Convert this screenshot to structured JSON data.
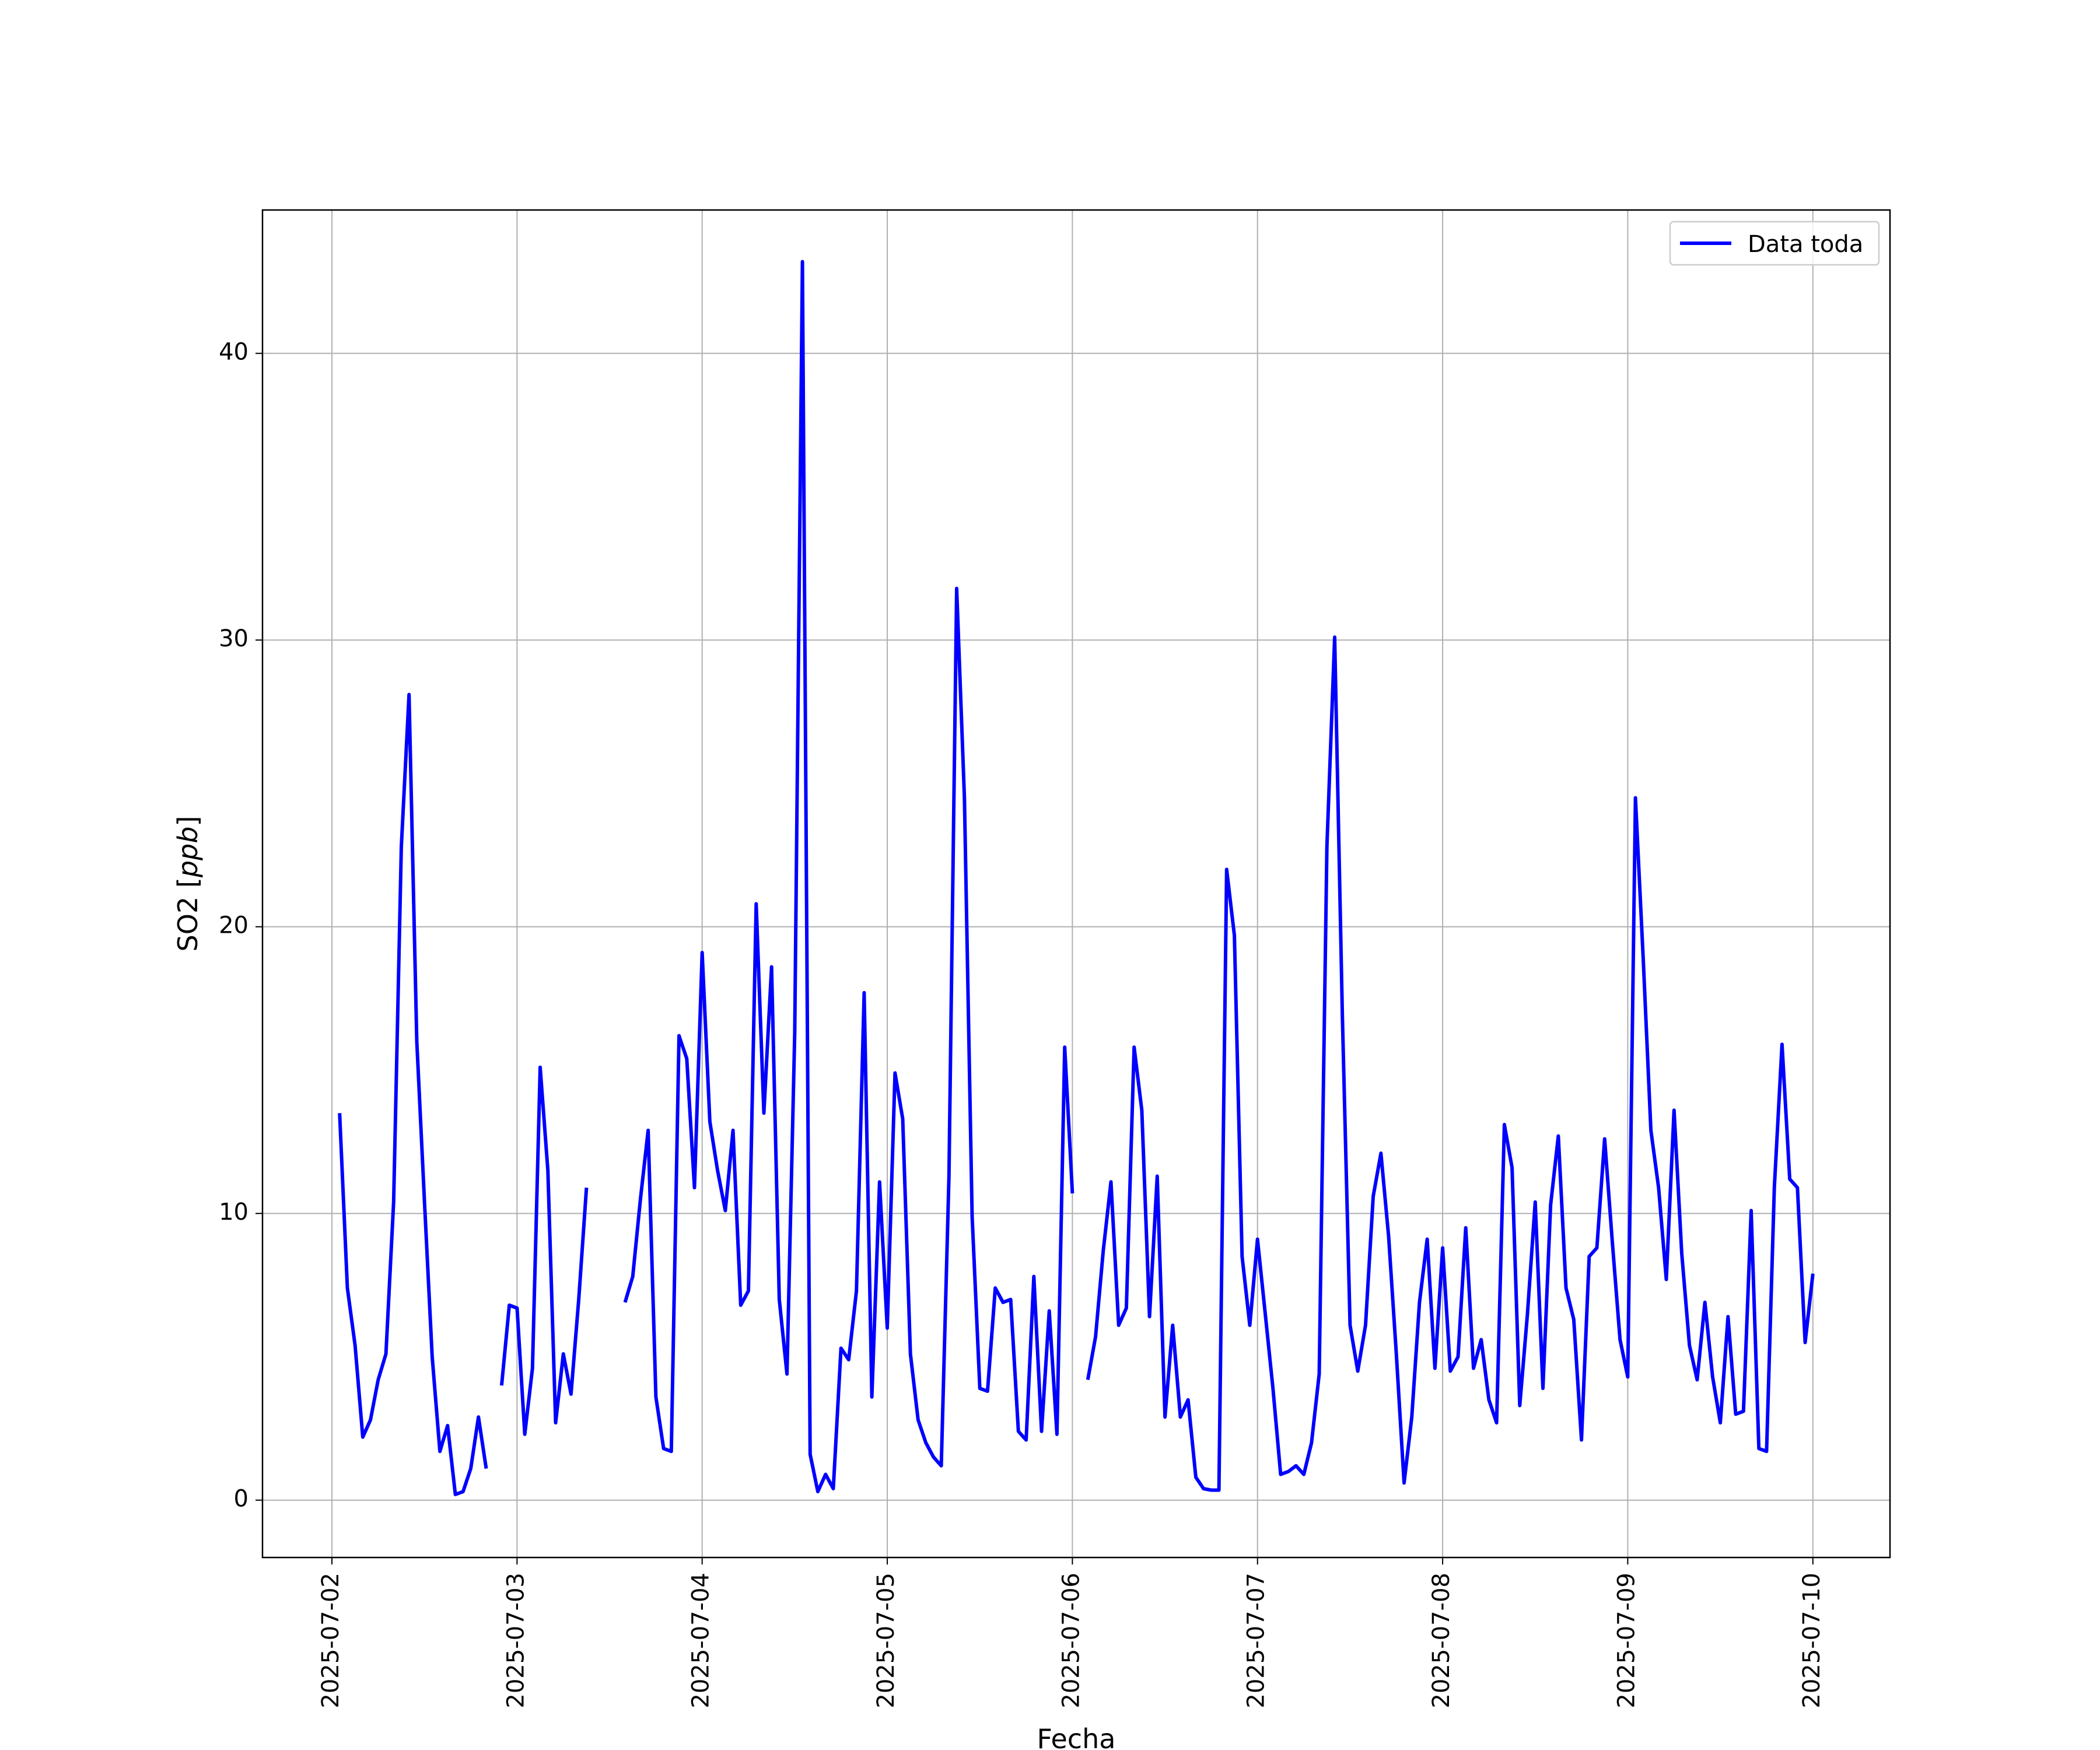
{
  "chart_data": {
    "type": "line",
    "title": "",
    "xlabel": "Fecha",
    "ylabel": "SO2 [",
    "ylabel_italic": "ppb",
    "ylabel_close": "]",
    "x_ticks": [
      "2025-07-02",
      "2025-07-03",
      "2025-07-04",
      "2025-07-05",
      "2025-07-06",
      "2025-07-07",
      "2025-07-08",
      "2025-07-09",
      "2025-07-10"
    ],
    "y_ticks": [
      0,
      10,
      20,
      30,
      40
    ],
    "xlim": [
      "2025-07-01 15:00",
      "2025-07-10 10:00"
    ],
    "ylim": [
      -2,
      45
    ],
    "grid": true,
    "legend_position": "top-right",
    "color": "#0000ff",
    "series": [
      {
        "name": "Data toda",
        "x": [
          "2025-07-02 01:00",
          "2025-07-02 02:00",
          "2025-07-02 03:00",
          "2025-07-02 04:00",
          "2025-07-02 05:00",
          "2025-07-02 06:00",
          "2025-07-02 07:00",
          "2025-07-02 08:00",
          "2025-07-02 09:00",
          "2025-07-02 10:00",
          "2025-07-02 11:00",
          "2025-07-02 12:00",
          "2025-07-02 13:00",
          "2025-07-02 14:00",
          "2025-07-02 15:00",
          "2025-07-02 16:00",
          "2025-07-02 17:00",
          "2025-07-02 18:00",
          "2025-07-02 19:00",
          "2025-07-02 20:00",
          null,
          "2025-07-02 22:00",
          "2025-07-02 23:00",
          "2025-07-03 00:00",
          "2025-07-03 01:00",
          "2025-07-03 02:00",
          "2025-07-03 03:00",
          "2025-07-03 04:00",
          "2025-07-03 05:00",
          "2025-07-03 06:00",
          "2025-07-03 07:00",
          "2025-07-03 08:00",
          "2025-07-03 09:00",
          null,
          "2025-07-03 14:00",
          "2025-07-03 15:00",
          "2025-07-03 16:00",
          "2025-07-03 17:00",
          "2025-07-03 18:00",
          "2025-07-03 19:00",
          "2025-07-03 20:00",
          "2025-07-03 21:00",
          "2025-07-03 22:00",
          "2025-07-03 23:00",
          "2025-07-04 00:00",
          "2025-07-04 01:00",
          "2025-07-04 02:00",
          "2025-07-04 03:00",
          "2025-07-04 04:00",
          "2025-07-04 05:00",
          "2025-07-04 06:00",
          "2025-07-04 07:00",
          "2025-07-04 08:00",
          "2025-07-04 09:00",
          "2025-07-04 10:00",
          "2025-07-04 11:00",
          "2025-07-04 12:00",
          "2025-07-04 13:00",
          "2025-07-04 14:00",
          "2025-07-04 15:00",
          "2025-07-04 16:00",
          "2025-07-04 17:00",
          "2025-07-04 18:00",
          "2025-07-04 19:00",
          "2025-07-04 20:00",
          "2025-07-04 21:00",
          "2025-07-04 22:00",
          "2025-07-04 23:00",
          "2025-07-05 00:00",
          "2025-07-05 01:00",
          "2025-07-05 02:00",
          "2025-07-05 03:00",
          "2025-07-05 04:00",
          "2025-07-05 05:00",
          "2025-07-05 06:00",
          "2025-07-05 07:00",
          "2025-07-05 08:00",
          "2025-07-05 09:00",
          "2025-07-05 10:00",
          "2025-07-05 11:00",
          "2025-07-05 12:00",
          "2025-07-05 13:00",
          "2025-07-05 14:00",
          "2025-07-05 15:00",
          "2025-07-05 16:00",
          "2025-07-05 17:00",
          "2025-07-05 18:00",
          "2025-07-05 19:00",
          "2025-07-05 20:00",
          "2025-07-05 21:00",
          "2025-07-05 22:00",
          "2025-07-05 23:00",
          "2025-07-06 00:00",
          null,
          "2025-07-06 02:00",
          "2025-07-06 03:00",
          "2025-07-06 04:00",
          "2025-07-06 05:00",
          "2025-07-06 06:00",
          "2025-07-06 07:00",
          "2025-07-06 08:00",
          "2025-07-06 09:00",
          "2025-07-06 10:00",
          "2025-07-06 11:00",
          "2025-07-06 12:00",
          "2025-07-06 13:00",
          "2025-07-06 14:00",
          "2025-07-06 15:00",
          "2025-07-06 16:00",
          "2025-07-06 17:00",
          "2025-07-06 18:00",
          "2025-07-06 19:00",
          "2025-07-06 20:00",
          "2025-07-06 21:00",
          "2025-07-06 22:00",
          "2025-07-06 23:00",
          "2025-07-07 00:00",
          "2025-07-07 01:00",
          "2025-07-07 02:00",
          "2025-07-07 03:00",
          "2025-07-07 04:00",
          "2025-07-07 05:00",
          "2025-07-07 06:00",
          "2025-07-07 07:00",
          "2025-07-07 08:00",
          "2025-07-07 09:00",
          "2025-07-07 10:00",
          "2025-07-07 11:00",
          "2025-07-07 12:00",
          "2025-07-07 13:00",
          "2025-07-07 14:00",
          "2025-07-07 15:00",
          "2025-07-07 16:00",
          "2025-07-07 17:00",
          "2025-07-07 18:00",
          "2025-07-07 19:00",
          "2025-07-07 20:00",
          "2025-07-07 21:00",
          "2025-07-07 22:00",
          "2025-07-07 23:00",
          "2025-07-08 00:00",
          "2025-07-08 01:00",
          "2025-07-08 02:00",
          "2025-07-08 03:00",
          "2025-07-08 04:00",
          "2025-07-08 05:00",
          "2025-07-08 06:00",
          "2025-07-08 07:00",
          "2025-07-08 08:00",
          "2025-07-08 09:00",
          "2025-07-08 10:00",
          "2025-07-08 11:00",
          "2025-07-08 12:00",
          "2025-07-08 13:00",
          "2025-07-08 14:00",
          "2025-07-08 15:00",
          "2025-07-08 16:00",
          "2025-07-08 17:00",
          "2025-07-08 18:00",
          "2025-07-08 19:00",
          "2025-07-08 20:00",
          "2025-07-08 21:00",
          "2025-07-08 22:00",
          "2025-07-08 23:00",
          "2025-07-09 00:00",
          "2025-07-09 01:00",
          "2025-07-09 02:00",
          "2025-07-09 03:00",
          "2025-07-09 04:00",
          "2025-07-09 05:00",
          "2025-07-09 06:00",
          "2025-07-09 07:00",
          "2025-07-09 08:00",
          "2025-07-09 09:00",
          "2025-07-09 10:00",
          "2025-07-09 11:00",
          "2025-07-09 12:00",
          "2025-07-09 13:00",
          "2025-07-09 14:00",
          "2025-07-09 15:00",
          "2025-07-09 16:00",
          "2025-07-09 17:00",
          "2025-07-09 18:00",
          "2025-07-09 19:00",
          "2025-07-09 20:00",
          "2025-07-09 21:00",
          "2025-07-09 22:00",
          "2025-07-09 23:00",
          "2025-07-10 00:00"
        ],
        "values": [
          13.5,
          7.4,
          5.4,
          2.2,
          2.8,
          4.2,
          5.1,
          10.4,
          22.8,
          28.1,
          16.0,
          10.4,
          5.0,
          1.7,
          2.6,
          0.2,
          0.3,
          1.1,
          2.9,
          1.1,
          null,
          4.0,
          6.8,
          6.7,
          2.3,
          4.6,
          15.1,
          11.5,
          2.7,
          5.1,
          3.7,
          7.0,
          10.9,
          null,
          6.9,
          7.8,
          10.5,
          12.9,
          3.6,
          1.8,
          1.7,
          16.2,
          15.4,
          10.9,
          19.1,
          13.2,
          11.5,
          10.1,
          12.9,
          6.8,
          7.3,
          20.8,
          13.5,
          18.6,
          7.0,
          4.4,
          16.3,
          43.2,
          1.6,
          0.3,
          0.9,
          0.4,
          5.3,
          4.9,
          7.3,
          17.7,
          3.6,
          11.1,
          6.0,
          14.9,
          13.3,
          5.1,
          2.8,
          2.0,
          1.5,
          1.2,
          11.3,
          31.8,
          24.5,
          9.9,
          3.9,
          3.8,
          7.4,
          6.9,
          7.0,
          2.4,
          2.1,
          7.8,
          2.4,
          6.6,
          2.3,
          15.8,
          10.7,
          null,
          4.2,
          5.7,
          8.7,
          11.1,
          6.1,
          6.7,
          15.8,
          13.6,
          6.4,
          11.3,
          2.9,
          6.1,
          2.9,
          3.5,
          0.8,
          0.4,
          0.35,
          0.35,
          22.0,
          19.7,
          8.5,
          6.1,
          9.1,
          6.5,
          3.9,
          0.9,
          1.0,
          1.2,
          0.9,
          2.0,
          4.4,
          22.8,
          30.1,
          16.9,
          6.1,
          4.5,
          6.1,
          10.6,
          12.1,
          9.2,
          5.1,
          0.6,
          2.9,
          6.9,
          9.1,
          4.6,
          8.8,
          4.5,
          5.0,
          9.5,
          4.6,
          5.6,
          3.5,
          2.7,
          13.1,
          11.6,
          3.3,
          6.5,
          10.4,
          3.9,
          10.3,
          12.7,
          7.4,
          6.3,
          2.1,
          8.5,
          8.8,
          12.6,
          9.0,
          5.6,
          4.3,
          24.5,
          18.9,
          12.9,
          10.9,
          7.7,
          13.6,
          8.6,
          5.4,
          4.2,
          6.9,
          4.3,
          2.7,
          6.4,
          3.0,
          3.1,
          10.1,
          1.8,
          1.7,
          10.9,
          15.9,
          11.2,
          10.9,
          5.5,
          7.9
        ]
      }
    ]
  }
}
